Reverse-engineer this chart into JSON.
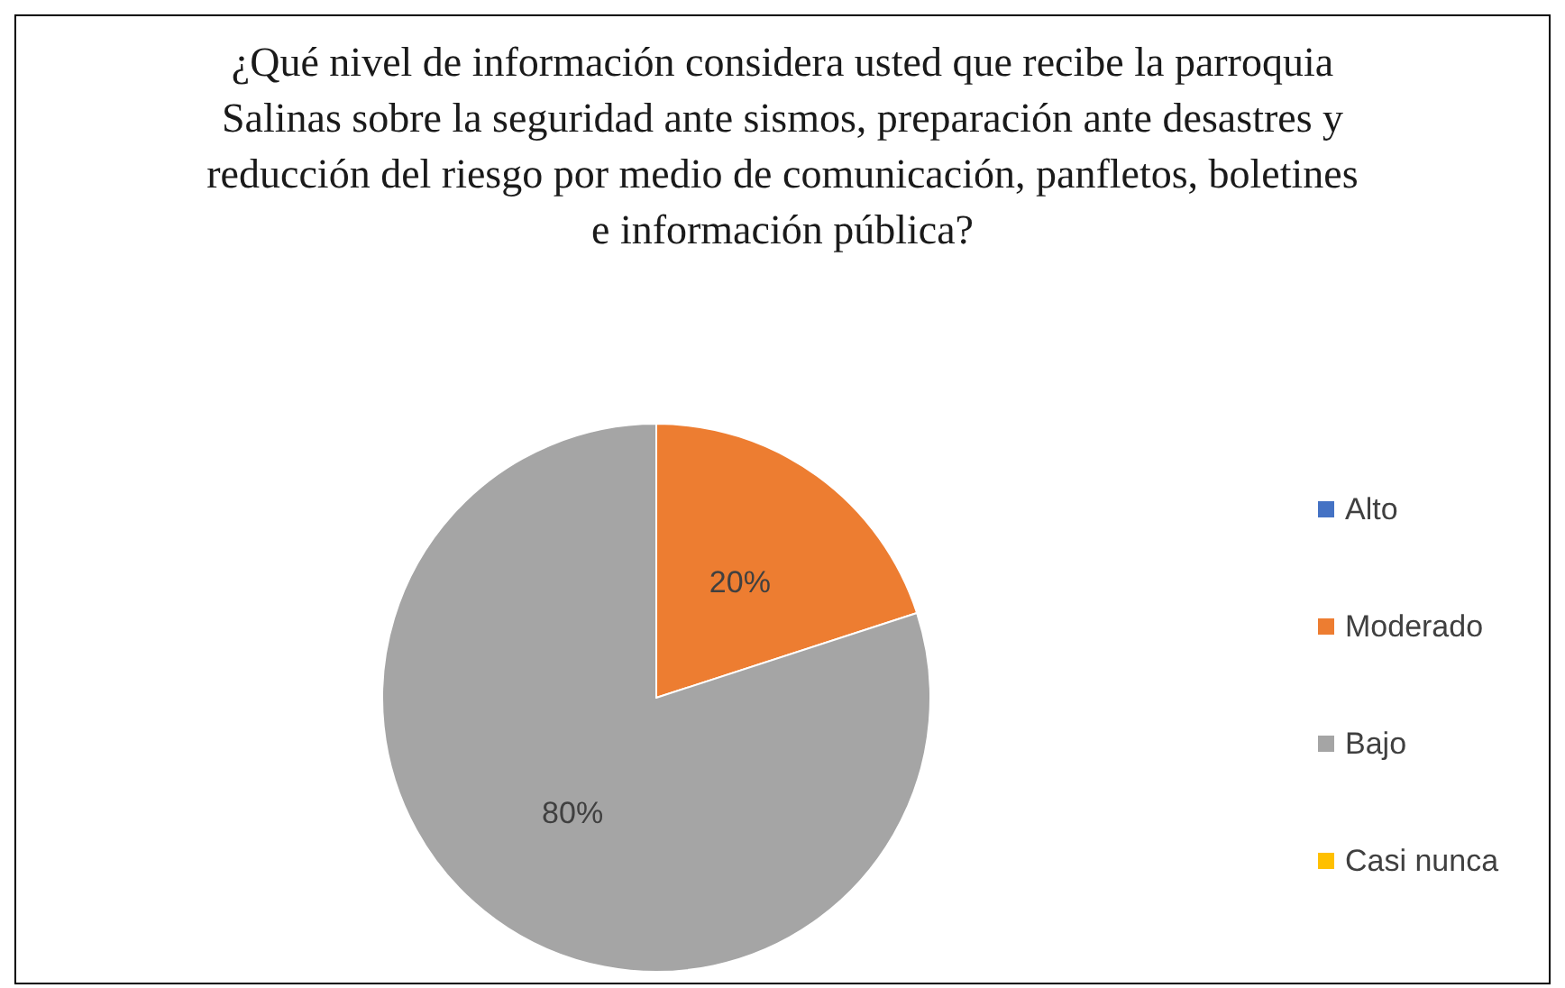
{
  "chart_data": {
    "type": "pie",
    "title": "¿Qué nivel de información considera usted que recibe la parroquia Salinas sobre la seguridad ante sismos, preparación ante desastres y reducción del riesgo por medio de comunicación, panfletos, boletines e información pública?",
    "categories": [
      "Alto",
      "Moderado",
      "Bajo",
      "Casi nunca"
    ],
    "values": [
      0,
      20,
      80,
      0
    ],
    "colors": [
      "#4472c4",
      "#ed7d31",
      "#a5a5a5",
      "#ffc000"
    ],
    "value_labels": [
      null,
      "20%",
      "80%",
      null
    ],
    "legend": "right"
  }
}
